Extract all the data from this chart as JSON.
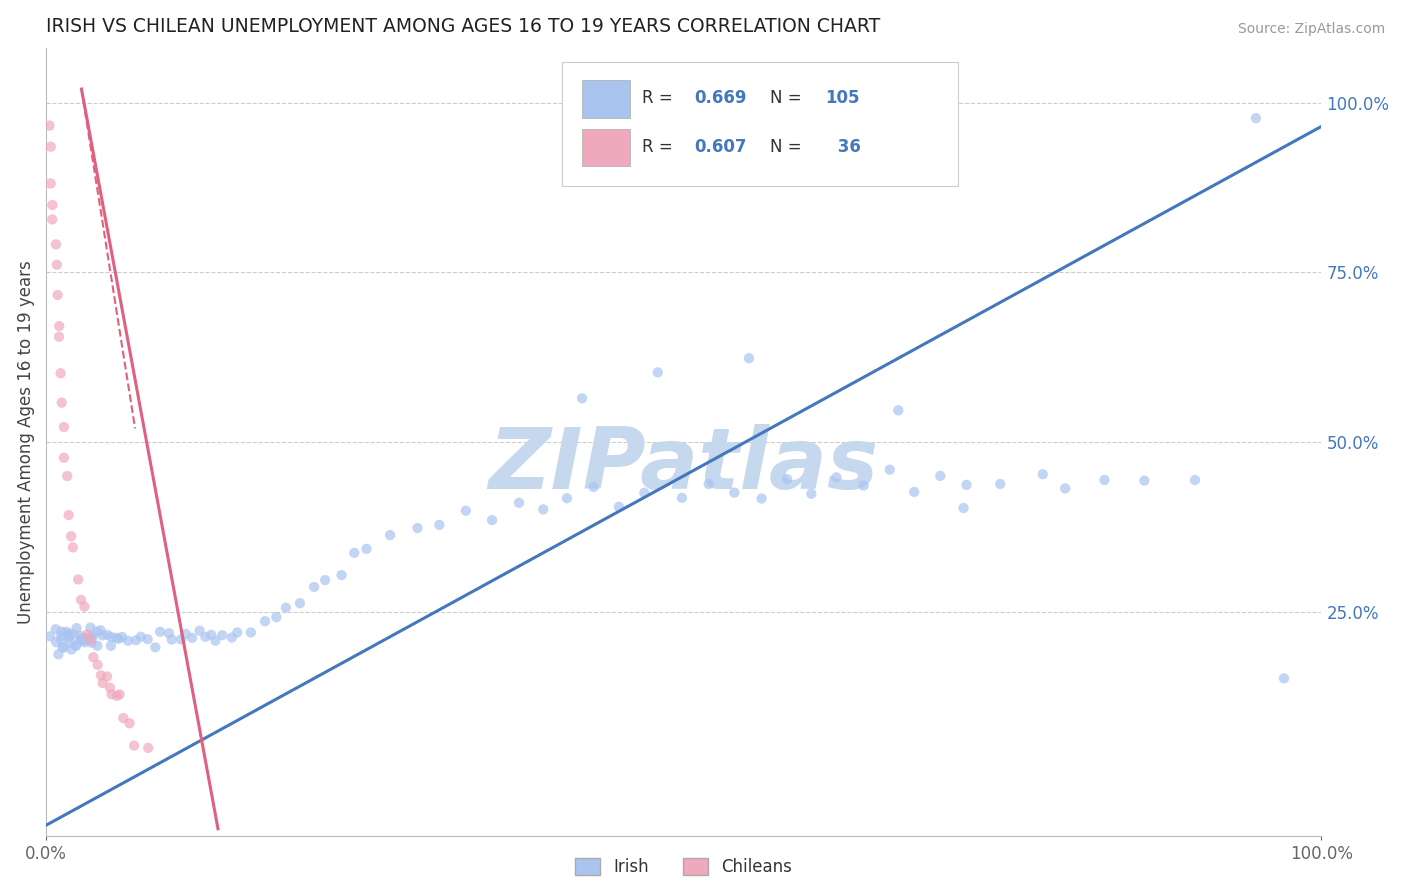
{
  "title": "IRISH VS CHILEAN UNEMPLOYMENT AMONG AGES 16 TO 19 YEARS CORRELATION CHART",
  "source": "Source: ZipAtlas.com",
  "ylabel": "Unemployment Among Ages 16 to 19 years",
  "xlim": [
    0.0,
    1.0
  ],
  "ylim": [
    -0.08,
    1.08
  ],
  "irish_color": "#aac4f0",
  "chilean_color": "#f0a8bc",
  "irish_line_color": "#4477bb",
  "chilean_line_color": "#e06080",
  "watermark": "ZIPatlas",
  "watermark_color": "#c5d8ee",
  "legend_label_irish": "Irish",
  "legend_label_chilean": "Chileans",
  "irish_r": 0.669,
  "irish_n": 105,
  "chilean_r": 0.607,
  "chilean_n": 36,
  "background_color": "#ffffff",
  "grid_color": "#cccccc",
  "title_color": "#222222",
  "axis_label_color": "#444444",
  "tick_color": "#666666",
  "right_ytick_color": "#4477bb",
  "irish_x": [
    0.005,
    0.007,
    0.008,
    0.009,
    0.01,
    0.012,
    0.013,
    0.014,
    0.015,
    0.016,
    0.017,
    0.018,
    0.019,
    0.02,
    0.021,
    0.022,
    0.023,
    0.024,
    0.025,
    0.026,
    0.027,
    0.028,
    0.029,
    0.03,
    0.031,
    0.032,
    0.033,
    0.034,
    0.035,
    0.036,
    0.038,
    0.04,
    0.041,
    0.043,
    0.045,
    0.047,
    0.05,
    0.052,
    0.055,
    0.058,
    0.06,
    0.065,
    0.07,
    0.075,
    0.08,
    0.085,
    0.09,
    0.095,
    0.1,
    0.105,
    0.11,
    0.115,
    0.12,
    0.125,
    0.13,
    0.135,
    0.14,
    0.145,
    0.15,
    0.16,
    0.17,
    0.18,
    0.19,
    0.2,
    0.21,
    0.22,
    0.23,
    0.24,
    0.25,
    0.27,
    0.29,
    0.31,
    0.33,
    0.35,
    0.37,
    0.39,
    0.41,
    0.43,
    0.45,
    0.47,
    0.5,
    0.52,
    0.54,
    0.56,
    0.58,
    0.6,
    0.62,
    0.64,
    0.66,
    0.68,
    0.7,
    0.72,
    0.75,
    0.78,
    0.8,
    0.83,
    0.86,
    0.9,
    0.95,
    0.97,
    0.67,
    0.72,
    0.55,
    0.48,
    0.42
  ],
  "irish_y": [
    0.21,
    0.2,
    0.22,
    0.195,
    0.21,
    0.215,
    0.205,
    0.22,
    0.195,
    0.215,
    0.205,
    0.21,
    0.22,
    0.215,
    0.2,
    0.205,
    0.215,
    0.205,
    0.21,
    0.22,
    0.215,
    0.21,
    0.205,
    0.2,
    0.215,
    0.21,
    0.205,
    0.22,
    0.215,
    0.205,
    0.21,
    0.215,
    0.205,
    0.22,
    0.21,
    0.215,
    0.205,
    0.22,
    0.215,
    0.205,
    0.22,
    0.215,
    0.21,
    0.22,
    0.215,
    0.205,
    0.22,
    0.215,
    0.21,
    0.215,
    0.22,
    0.21,
    0.215,
    0.205,
    0.22,
    0.215,
    0.21,
    0.205,
    0.22,
    0.215,
    0.23,
    0.24,
    0.25,
    0.27,
    0.29,
    0.3,
    0.31,
    0.33,
    0.35,
    0.36,
    0.38,
    0.38,
    0.4,
    0.39,
    0.41,
    0.4,
    0.42,
    0.43,
    0.41,
    0.43,
    0.42,
    0.44,
    0.43,
    0.41,
    0.44,
    0.43,
    0.45,
    0.44,
    0.46,
    0.43,
    0.45,
    0.43,
    0.44,
    0.45,
    0.43,
    0.44,
    0.45,
    0.44,
    0.97,
    0.15,
    0.55,
    0.4,
    0.62,
    0.6,
    0.57
  ],
  "chilean_x": [
    0.002,
    0.003,
    0.004,
    0.005,
    0.006,
    0.007,
    0.008,
    0.009,
    0.01,
    0.011,
    0.012,
    0.013,
    0.014,
    0.015,
    0.016,
    0.018,
    0.02,
    0.022,
    0.025,
    0.027,
    0.03,
    0.033,
    0.035,
    0.038,
    0.04,
    0.043,
    0.045,
    0.048,
    0.05,
    0.052,
    0.055,
    0.058,
    0.06,
    0.065,
    0.07,
    0.08
  ],
  "chilean_y": [
    0.97,
    0.93,
    0.88,
    0.85,
    0.82,
    0.8,
    0.76,
    0.72,
    0.68,
    0.65,
    0.6,
    0.55,
    0.52,
    0.48,
    0.44,
    0.4,
    0.37,
    0.34,
    0.3,
    0.27,
    0.25,
    0.22,
    0.2,
    0.18,
    0.175,
    0.165,
    0.15,
    0.145,
    0.14,
    0.135,
    0.13,
    0.12,
    0.1,
    0.08,
    0.06,
    0.04
  ],
  "irish_line_x": [
    0.0,
    1.0
  ],
  "irish_line_y": [
    -0.065,
    0.965
  ],
  "chilean_line_x": [
    0.028,
    0.135
  ],
  "chilean_line_y": [
    1.02,
    -0.07
  ]
}
